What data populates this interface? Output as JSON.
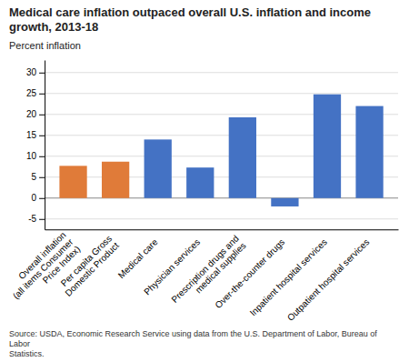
{
  "chart_data": {
    "type": "bar",
    "title": "Medical care inflation outpaced overall U.S. inflation and income growth, 2013-18",
    "ylabel": "Percent inflation",
    "source": "Source: USDA, Economic Research Service using data from the U.S. Department of Labor, Bureau of Labor\nStatistics.",
    "categories": [
      "Overall inflation\n(all items Consumer\nPrice Index)",
      "Per capita Gross\nDomestic Product",
      "Medical care",
      "Physician services",
      "Prescription drugs and\nmedical supplies",
      "Over-the-counter drugs",
      "Inpatient hospital services",
      "Outpatient hospital services"
    ],
    "values": [
      7.7,
      8.7,
      14.0,
      7.3,
      19.3,
      -2.0,
      24.8,
      22.0
    ],
    "colors": [
      "#e07b39",
      "#e07b39",
      "#4472c4",
      "#4472c4",
      "#4472c4",
      "#4472c4",
      "#4472c4",
      "#4472c4"
    ],
    "ylim": [
      -7.5,
      33
    ],
    "yticks": [
      -5,
      0,
      5,
      10,
      15,
      20,
      25,
      30
    ],
    "grid": true
  }
}
